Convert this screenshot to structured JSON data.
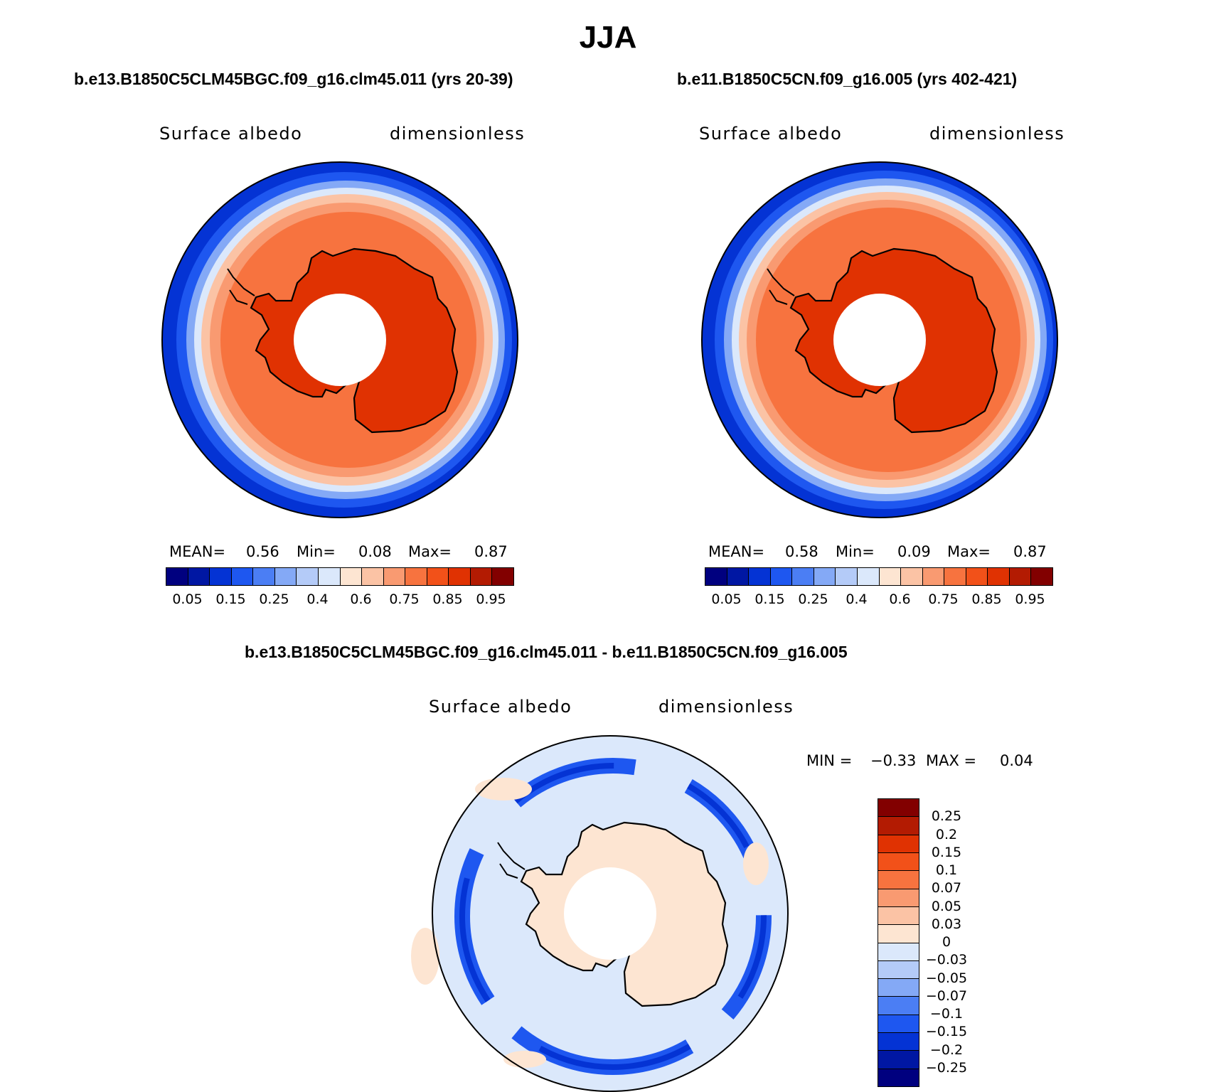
{
  "figure": {
    "season_title": "JJA",
    "diff_title": "b.e13.B1850C5CLM45BGC.f09_g16.clm45.011 - b.e11.B1850C5CN.f09_g16.005"
  },
  "panels": [
    {
      "case_title": "b.e13.B1850C5CLM45BGC.f09_g16.clm45.011 (yrs 20-39)",
      "variable": "Surface albedo",
      "units": "dimensionless",
      "stats": {
        "mean_label": "MEAN=",
        "mean": "0.56",
        "min_label": "Min=",
        "min": "0.08",
        "max_label": "Max=",
        "max": "0.87"
      }
    },
    {
      "case_title": "b.e11.B1850C5CN.f09_g16.005 (yrs 402-421)",
      "variable": "Surface albedo",
      "units": "dimensionless",
      "stats": {
        "mean_label": "MEAN=",
        "mean": "0.58",
        "min_label": "Min=",
        "min": "0.09",
        "max_label": "Max=",
        "max": "0.87"
      }
    }
  ],
  "diff_panel": {
    "variable": "Surface albedo",
    "units": "dimensionless",
    "min_label": "MIN =",
    "min": "−0.33",
    "max_label": "MAX =",
    "max": "0.04"
  },
  "chart_data": [
    {
      "type": "heatmap",
      "projection": "south polar stereographic",
      "title": "Surface albedo (b.e13.B1850C5CLM45BGC.f09_g16.clm45.011, yrs 20-39)",
      "units": "dimensionless",
      "colorbar_labels": [
        "0.05",
        "0.15",
        "0.25",
        "0.4",
        "0.6",
        "0.75",
        "0.85",
        "0.95"
      ],
      "colorbar_colors": [
        "#00007f",
        "#0017a3",
        "#0433d4",
        "#1e57f0",
        "#4b7ef4",
        "#84a9f6",
        "#b4cbf8",
        "#dbe8fb",
        "#fde5d2",
        "#fbc3a5",
        "#f99a71",
        "#f7733f",
        "#f25119",
        "#e03202",
        "#b31b02",
        "#820000"
      ],
      "mean": 0.56,
      "min": 0.08,
      "max": 0.87
    },
    {
      "type": "heatmap",
      "projection": "south polar stereographic",
      "title": "Surface albedo (b.e11.B1850C5CN.f09_g16.005, yrs 402-421)",
      "units": "dimensionless",
      "colorbar_labels": [
        "0.05",
        "0.15",
        "0.25",
        "0.4",
        "0.6",
        "0.75",
        "0.85",
        "0.95"
      ],
      "colorbar_colors": [
        "#00007f",
        "#0017a3",
        "#0433d4",
        "#1e57f0",
        "#4b7ef4",
        "#84a9f6",
        "#b4cbf8",
        "#dbe8fb",
        "#fde5d2",
        "#fbc3a5",
        "#f99a71",
        "#f7733f",
        "#f25119",
        "#e03202",
        "#b31b02",
        "#820000"
      ],
      "mean": 0.58,
      "min": 0.09,
      "max": 0.87
    },
    {
      "type": "heatmap",
      "projection": "south polar stereographic",
      "title": "Surface albedo difference",
      "units": "dimensionless",
      "colorbar_labels": [
        "0.25",
        "0.2",
        "0.15",
        "0.1",
        "0.07",
        "0.05",
        "0.03",
        "0",
        "−0.03",
        "−0.05",
        "−0.07",
        "−0.1",
        "−0.15",
        "−0.2",
        "−0.25"
      ],
      "colorbar_colors": [
        "#820000",
        "#b31b02",
        "#e03202",
        "#f25119",
        "#f7733f",
        "#f99a71",
        "#fbc3a5",
        "#fde5d2",
        "#dbe8fb",
        "#b4cbf8",
        "#84a9f6",
        "#4b7ef4",
        "#1e57f0",
        "#0433d4",
        "#0017a3",
        "#00007f"
      ],
      "min": -0.33,
      "max": 0.04
    }
  ]
}
